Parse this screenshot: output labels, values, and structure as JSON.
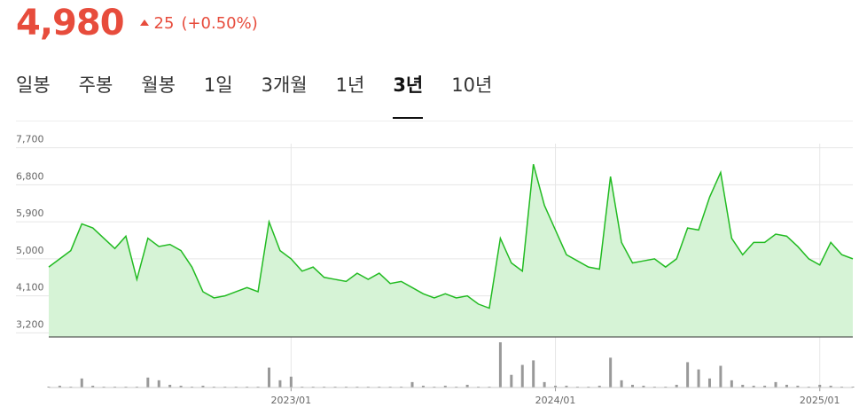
{
  "header": {
    "price": "4,980",
    "change": "25",
    "change_pct": "(+0.50%)"
  },
  "tabs": [
    {
      "label": "일봉"
    },
    {
      "label": "주봉"
    },
    {
      "label": "월봉"
    },
    {
      "label": "1일"
    },
    {
      "label": "3개월"
    },
    {
      "label": "1년"
    },
    {
      "label": "3년",
      "selected": true
    },
    {
      "label": "10년"
    }
  ],
  "chart_data": {
    "type": "line",
    "color": "#22bb22",
    "fill": "#d6f3d6",
    "grid": true,
    "categories": [
      null,
      null,
      null,
      null,
      null,
      null,
      null,
      null,
      null,
      null,
      null,
      null,
      null,
      null,
      null,
      null,
      null,
      null,
      null,
      null,
      null,
      null,
      "2023/01",
      null,
      null,
      null,
      null,
      null,
      null,
      null,
      null,
      null,
      null,
      null,
      null,
      null,
      null,
      null,
      null,
      null,
      null,
      null,
      null,
      null,
      null,
      null,
      "2024/01",
      null,
      null,
      null,
      null,
      null,
      null,
      null,
      null,
      null,
      null,
      null,
      null,
      null,
      null,
      null,
      null,
      null,
      null,
      null,
      null,
      null,
      null,
      null,
      "2025/01",
      null,
      null,
      null
    ],
    "values": [
      4800,
      5000,
      5200,
      5850,
      5750,
      5500,
      5250,
      5550,
      4500,
      5500,
      5300,
      5350,
      5200,
      4800,
      4200,
      4050,
      4100,
      4200,
      4300,
      4200,
      5900,
      5200,
      5000,
      4700,
      4800,
      4550,
      4500,
      4450,
      4650,
      4500,
      4650,
      4400,
      4450,
      4300,
      4150,
      4050,
      4150,
      4050,
      4100,
      3900,
      3800,
      5500,
      4900,
      4700,
      7300,
      6300,
      5700,
      5100,
      4950,
      4800,
      4750,
      7000,
      5400,
      4900,
      4950,
      5000,
      4800,
      5000,
      5750,
      5700,
      6500,
      7100,
      5500,
      5100,
      5400,
      5400,
      5600,
      5550,
      5300,
      5000,
      4850,
      5400,
      5100,
      5000
    ],
    "ylim": [
      3100,
      7800
    ],
    "yticks": [
      {
        "value": 3200,
        "label": "3,200"
      },
      {
        "value": 4100,
        "label": "4,100"
      },
      {
        "value": 5000,
        "label": "5,000"
      },
      {
        "value": 5900,
        "label": "5,900"
      },
      {
        "value": 6800,
        "label": "6,800"
      },
      {
        "value": 7700,
        "label": "7,700"
      }
    ],
    "volume": {
      "color": "#999999",
      "values": [
        1,
        2,
        1,
        10,
        2,
        1,
        1,
        1,
        1,
        11,
        8,
        3,
        2,
        1,
        2,
        1,
        1,
        1,
        1,
        1,
        22,
        8,
        12,
        1,
        1,
        1,
        1,
        1,
        1,
        1,
        1,
        1,
        1,
        6,
        2,
        1,
        2,
        1,
        3,
        1,
        1,
        50,
        14,
        25,
        30,
        6,
        2,
        2,
        1,
        1,
        2,
        33,
        8,
        3,
        2,
        1,
        1,
        3,
        28,
        20,
        10,
        24,
        8,
        3,
        2,
        2,
        6,
        3,
        2,
        1,
        3,
        2,
        1,
        1
      ]
    }
  }
}
